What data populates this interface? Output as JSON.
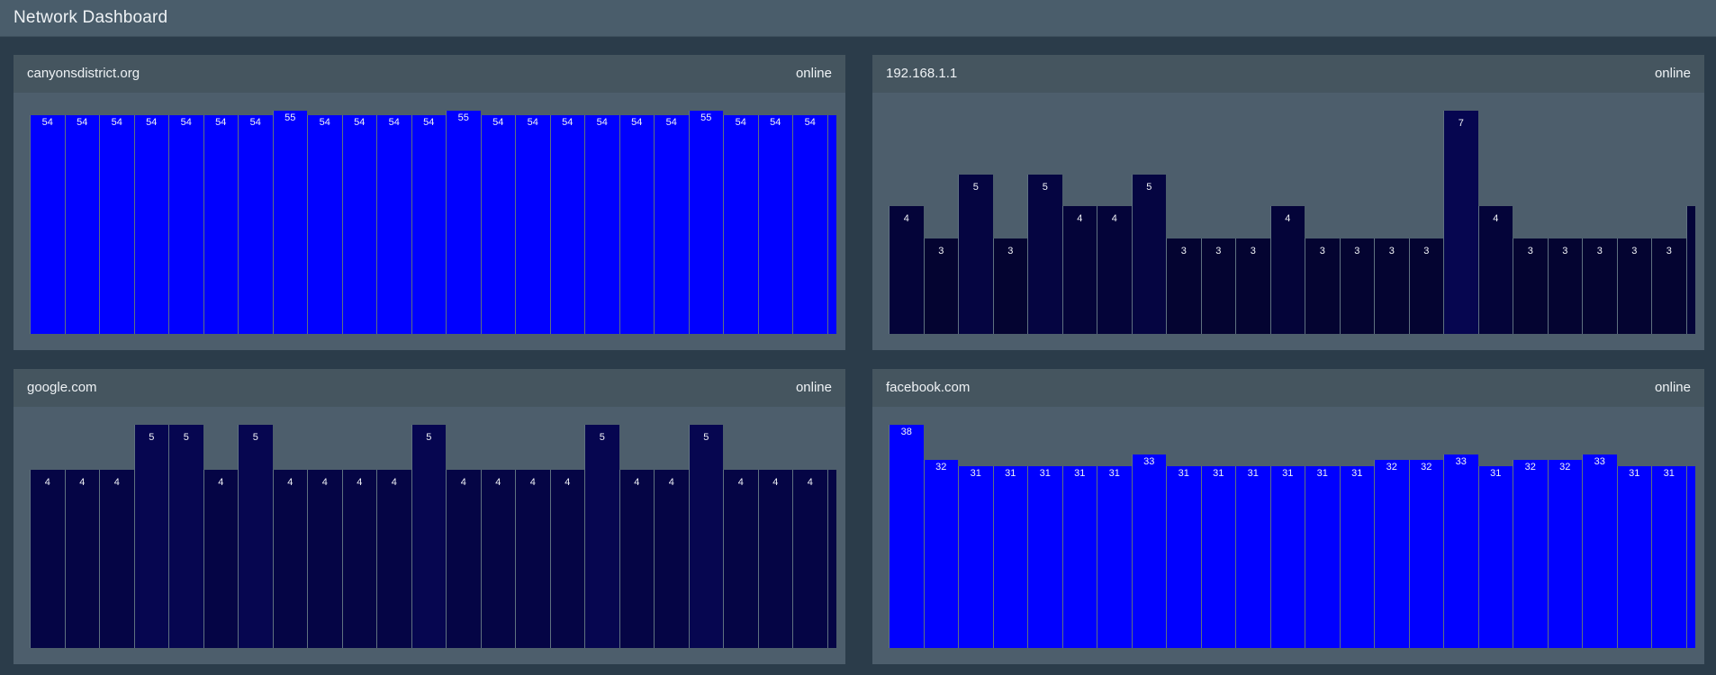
{
  "header": {
    "title": "Network Dashboard"
  },
  "panels": [
    {
      "host": "canyonsdistrict.org",
      "status": "online",
      "chart_data": {
        "type": "bar",
        "values": [
          54,
          54,
          54,
          54,
          54,
          54,
          54,
          55,
          54,
          54,
          54,
          54,
          55,
          54,
          54,
          54,
          54,
          54,
          54,
          55,
          54,
          54,
          54,
          54
        ],
        "ylim": [
          0,
          55
        ]
      }
    },
    {
      "host": "192.168.1.1",
      "status": "online",
      "chart_data": {
        "type": "bar",
        "values": [
          4,
          3,
          5,
          3,
          5,
          4,
          4,
          5,
          3,
          3,
          3,
          4,
          3,
          3,
          3,
          3,
          7,
          4,
          3,
          3,
          3,
          3,
          3,
          4
        ],
        "ylim": [
          0,
          7
        ]
      }
    },
    {
      "host": "google.com",
      "status": "online",
      "chart_data": {
        "type": "bar",
        "values": [
          4,
          4,
          4,
          5,
          5,
          4,
          5,
          4,
          4,
          4,
          4,
          5,
          4,
          4,
          4,
          4,
          5,
          4,
          4,
          5,
          4,
          4,
          4,
          4
        ],
        "ylim": [
          0,
          5
        ]
      }
    },
    {
      "host": "facebook.com",
      "status": "online",
      "chart_data": {
        "type": "bar",
        "values": [
          38,
          32,
          31,
          31,
          31,
          31,
          31,
          33,
          31,
          31,
          31,
          31,
          31,
          31,
          32,
          32,
          33,
          31,
          32,
          32,
          33,
          31,
          31,
          31
        ],
        "ylim": [
          0,
          38
        ]
      }
    }
  ]
}
